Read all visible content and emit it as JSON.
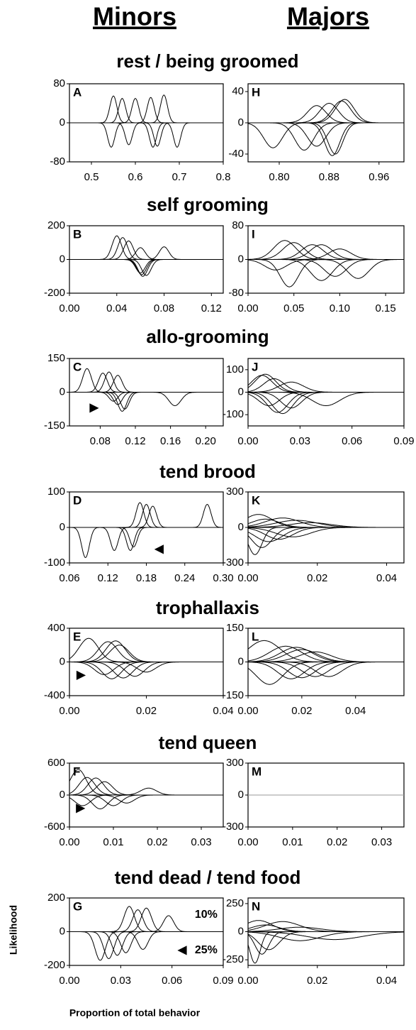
{
  "column_headers": [
    "Minors",
    "Majors"
  ],
  "y_label": "Likelihood",
  "x_label": "Proportion of total behavior",
  "chart_data": [
    {
      "type": "line",
      "title": "rest / being groomed",
      "panel": "A",
      "xlim": [
        0.45,
        0.8
      ],
      "xticks": [
        0.5,
        0.6,
        0.7,
        0.8
      ],
      "ylim": [
        -80,
        80
      ],
      "yticks": [
        -80,
        0,
        80
      ],
      "curves": [
        {
          "x": 0.55,
          "y": 55,
          "sd": 0.008
        },
        {
          "x": 0.57,
          "y": 50,
          "sd": 0.008
        },
        {
          "x": 0.6,
          "y": 50,
          "sd": 0.008
        },
        {
          "x": 0.635,
          "y": 52,
          "sd": 0.008
        },
        {
          "x": 0.665,
          "y": 57,
          "sd": 0.008
        },
        {
          "x": 0.545,
          "y": -50,
          "sd": 0.008
        },
        {
          "x": 0.585,
          "y": -45,
          "sd": 0.008
        },
        {
          "x": 0.64,
          "y": -50,
          "sd": 0.008
        },
        {
          "x": 0.65,
          "y": -48,
          "sd": 0.008
        },
        {
          "x": 0.695,
          "y": -50,
          "sd": 0.008
        }
      ]
    },
    {
      "type": "line",
      "title": "self grooming",
      "panel": "B",
      "xlim": [
        0,
        0.13
      ],
      "xticks": [
        {
          "value": 0,
          "label": "0.00"
        },
        {
          "value": 0.04,
          "label": "0.04"
        },
        {
          "value": 0.08,
          "label": "0.08"
        },
        {
          "value": 0.12,
          "label": "0.12"
        }
      ],
      "ylim": [
        -200,
        200
      ],
      "yticks": [
        -200,
        0,
        200
      ],
      "curves": [
        {
          "x": 0.04,
          "y": 140,
          "sd": 0.004
        },
        {
          "x": 0.045,
          "y": 130,
          "sd": 0.004
        },
        {
          "x": 0.05,
          "y": 110,
          "sd": 0.004
        },
        {
          "x": 0.06,
          "y": 70,
          "sd": 0.004
        },
        {
          "x": 0.08,
          "y": 75,
          "sd": 0.004
        },
        {
          "x": 0.06,
          "y": -80,
          "sd": 0.004
        },
        {
          "x": 0.061,
          "y": -90,
          "sd": 0.004
        },
        {
          "x": 0.062,
          "y": -100,
          "sd": 0.004
        },
        {
          "x": 0.065,
          "y": -95,
          "sd": 0.004
        }
      ]
    },
    {
      "type": "line",
      "title": "allo-grooming",
      "panel": "C",
      "xlim": [
        0.045,
        0.22
      ],
      "xticks": [
        {
          "value": 0.08,
          "label": "0.08"
        },
        {
          "value": 0.12,
          "label": "0.12"
        },
        {
          "value": 0.16,
          "label": "0.16"
        },
        {
          "value": 0.2,
          "label": "0.20"
        }
      ],
      "ylim": [
        -150,
        150
      ],
      "yticks": [
        -150,
        0,
        150
      ],
      "curves": [
        {
          "x": 0.065,
          "y": 105,
          "sd": 0.005
        },
        {
          "x": 0.083,
          "y": 85,
          "sd": 0.005
        },
        {
          "x": 0.09,
          "y": 90,
          "sd": 0.005
        },
        {
          "x": 0.1,
          "y": 75,
          "sd": 0.005
        },
        {
          "x": 0.095,
          "y": -40,
          "sd": 0.005
        },
        {
          "x": 0.1,
          "y": -55,
          "sd": 0.005
        },
        {
          "x": 0.105,
          "y": -85,
          "sd": 0.005
        },
        {
          "x": 0.108,
          "y": -75,
          "sd": 0.005
        },
        {
          "x": 0.165,
          "y": -60,
          "sd": 0.007
        }
      ],
      "annotations": [
        {
          "text": "▶",
          "x": 0.073,
          "y": -70
        }
      ]
    },
    {
      "type": "line",
      "title": "tend brood",
      "panel": "D",
      "xlim": [
        0.06,
        0.3
      ],
      "xticks": [
        {
          "value": 0.06,
          "label": "0.06"
        },
        {
          "value": 0.12,
          "label": "0.12"
        },
        {
          "value": 0.18,
          "label": "0.18"
        },
        {
          "value": 0.24,
          "label": "0.24"
        },
        {
          "value": 0.3,
          "label": "0.30"
        }
      ],
      "ylim": [
        -100,
        100
      ],
      "yticks": [
        -100,
        0,
        100
      ],
      "curves": [
        {
          "x": 0.17,
          "y": 70,
          "sd": 0.006
        },
        {
          "x": 0.18,
          "y": 65,
          "sd": 0.006
        },
        {
          "x": 0.19,
          "y": 60,
          "sd": 0.006
        },
        {
          "x": 0.275,
          "y": 65,
          "sd": 0.006
        },
        {
          "x": 0.085,
          "y": -85,
          "sd": 0.006
        },
        {
          "x": 0.13,
          "y": -65,
          "sd": 0.006
        },
        {
          "x": 0.155,
          "y": -65,
          "sd": 0.006
        },
        {
          "x": 0.16,
          "y": -55,
          "sd": 0.006
        }
      ],
      "annotations": [
        {
          "text": "◀",
          "x": 0.2,
          "y": -62
        }
      ]
    },
    {
      "type": "line",
      "title": "trophallaxis",
      "panel": "E",
      "xlim": [
        0,
        0.04
      ],
      "xticks": [
        {
          "value": 0,
          "label": "0.00"
        },
        {
          "value": 0.02,
          "label": "0.02"
        },
        {
          "value": 0.04,
          "label": "0.04"
        }
      ],
      "ylim": [
        -400,
        400
      ],
      "yticks": [
        -400,
        0,
        400
      ],
      "curves": [
        {
          "x": 0.005,
          "y": 280,
          "sd": 0.0025
        },
        {
          "x": 0.01,
          "y": 240,
          "sd": 0.0025
        },
        {
          "x": 0.012,
          "y": 250,
          "sd": 0.0025
        },
        {
          "x": 0.013,
          "y": 200,
          "sd": 0.0025
        },
        {
          "x": 0.009,
          "y": -150,
          "sd": 0.0025
        },
        {
          "x": 0.011,
          "y": -200,
          "sd": 0.0025
        },
        {
          "x": 0.014,
          "y": -190,
          "sd": 0.0025
        },
        {
          "x": 0.017,
          "y": -170,
          "sd": 0.0025
        },
        {
          "x": 0.02,
          "y": -120,
          "sd": 0.0025
        }
      ],
      "annotations": [
        {
          "text": "▶",
          "x": 0.003,
          "y": -160
        }
      ]
    },
    {
      "type": "line",
      "title": "tend queen",
      "panel": "F",
      "xlim": [
        0,
        0.035
      ],
      "xticks": [
        {
          "value": 0,
          "label": "0.00"
        },
        {
          "value": 0.01,
          "label": "0.01"
        },
        {
          "value": 0.02,
          "label": "0.02"
        },
        {
          "value": 0.03,
          "label": "0.03"
        }
      ],
      "ylim": [
        -600,
        600
      ],
      "yticks": [
        -600,
        0,
        600
      ],
      "curves": [
        {
          "x": 0.002,
          "y": 480,
          "sd": 0.0018
        },
        {
          "x": 0.004,
          "y": 330,
          "sd": 0.0018
        },
        {
          "x": 0.006,
          "y": 320,
          "sd": 0.0018
        },
        {
          "x": 0.008,
          "y": 250,
          "sd": 0.0018
        },
        {
          "x": 0.018,
          "y": 130,
          "sd": 0.0018
        },
        {
          "x": 0.003,
          "y": -200,
          "sd": 0.0018
        },
        {
          "x": 0.007,
          "y": -260,
          "sd": 0.0018
        },
        {
          "x": 0.01,
          "y": -200,
          "sd": 0.0018
        },
        {
          "x": 0.013,
          "y": -150,
          "sd": 0.0018
        }
      ],
      "annotations": [
        {
          "text": "▶",
          "x": 0.0025,
          "y": -250
        }
      ]
    },
    {
      "type": "line",
      "title": "tend dead / tend food",
      "panel": "G",
      "xlim": [
        0,
        0.09
      ],
      "xticks": [
        {
          "value": 0,
          "label": "0.00"
        },
        {
          "value": 0.03,
          "label": "0.03"
        },
        {
          "value": 0.06,
          "label": "0.06"
        },
        {
          "value": 0.09,
          "label": "0.09"
        }
      ],
      "ylim": [
        -200,
        200
      ],
      "yticks": [
        -200,
        0,
        200
      ],
      "curves": [
        {
          "x": 0.035,
          "y": 150,
          "sd": 0.003
        },
        {
          "x": 0.04,
          "y": 130,
          "sd": 0.003
        },
        {
          "x": 0.045,
          "y": 140,
          "sd": 0.003
        },
        {
          "x": 0.058,
          "y": 95,
          "sd": 0.003
        },
        {
          "x": 0.018,
          "y": -170,
          "sd": 0.003
        },
        {
          "x": 0.023,
          "y": -160,
          "sd": 0.003
        },
        {
          "x": 0.028,
          "y": -140,
          "sd": 0.003
        },
        {
          "x": 0.033,
          "y": -125,
          "sd": 0.003
        },
        {
          "x": 0.043,
          "y": -105,
          "sd": 0.003
        }
      ],
      "annotations": [
        {
          "text": "10%",
          "x": 0.08,
          "y": 100
        },
        {
          "text": "◀",
          "x": 0.066,
          "y": -110
        },
        {
          "text": "25%",
          "x": 0.08,
          "y": -110
        }
      ]
    },
    {
      "type": "line",
      "panel": "H",
      "xlim": [
        0.75,
        1.0
      ],
      "xticks": [
        {
          "value": 0.8,
          "label": "0.80"
        },
        {
          "value": 0.88,
          "label": "0.88"
        },
        {
          "value": 0.96,
          "label": "0.96"
        }
      ],
      "ylim": [
        -50,
        50
      ],
      "yticks": [
        -40,
        0,
        40
      ],
      "curves": [
        {
          "x": 0.86,
          "y": 22,
          "sd": 0.015
        },
        {
          "x": 0.88,
          "y": 25,
          "sd": 0.015
        },
        {
          "x": 0.9,
          "y": 28,
          "sd": 0.015
        },
        {
          "x": 0.905,
          "y": 30,
          "sd": 0.015
        },
        {
          "x": 0.79,
          "y": -32,
          "sd": 0.015
        },
        {
          "x": 0.84,
          "y": -35,
          "sd": 0.015
        },
        {
          "x": 0.86,
          "y": -30,
          "sd": 0.015
        },
        {
          "x": 0.885,
          "y": -42,
          "sd": 0.012
        },
        {
          "x": 0.89,
          "y": -40,
          "sd": 0.012
        }
      ]
    },
    {
      "type": "line",
      "panel": "I",
      "xlim": [
        0,
        0.17
      ],
      "xticks": [
        {
          "value": 0,
          "label": "0.00"
        },
        {
          "value": 0.05,
          "label": "0.05"
        },
        {
          "value": 0.1,
          "label": "0.10"
        },
        {
          "value": 0.15,
          "label": "0.15"
        }
      ],
      "ylim": [
        -80,
        80
      ],
      "yticks": [
        -80,
        0,
        80
      ],
      "curves": [
        {
          "x": 0.04,
          "y": 45,
          "sd": 0.012
        },
        {
          "x": 0.05,
          "y": 40,
          "sd": 0.012
        },
        {
          "x": 0.07,
          "y": 35,
          "sd": 0.012
        },
        {
          "x": 0.08,
          "y": 35,
          "sd": 0.012
        },
        {
          "x": 0.1,
          "y": 25,
          "sd": 0.012
        },
        {
          "x": 0.03,
          "y": -25,
          "sd": 0.012
        },
        {
          "x": 0.045,
          "y": -65,
          "sd": 0.01
        },
        {
          "x": 0.08,
          "y": -50,
          "sd": 0.012
        },
        {
          "x": 0.095,
          "y": -40,
          "sd": 0.012
        },
        {
          "x": 0.12,
          "y": -45,
          "sd": 0.012
        }
      ]
    },
    {
      "type": "line",
      "panel": "J",
      "xlim": [
        0,
        0.09
      ],
      "xticks": [
        {
          "value": 0,
          "label": "0.00"
        },
        {
          "value": 0.03,
          "label": "0.03"
        },
        {
          "value": 0.06,
          "label": "0.06"
        },
        {
          "value": 0.09,
          "label": "0.09"
        }
      ],
      "ylim": [
        -150,
        150
      ],
      "yticks": [
        -100,
        0,
        100
      ],
      "curves": [
        {
          "x": 0.008,
          "y": 75,
          "sd": 0.006
        },
        {
          "x": 0.01,
          "y": 80,
          "sd": 0.006
        },
        {
          "x": 0.015,
          "y": 60,
          "sd": 0.006
        },
        {
          "x": 0.025,
          "y": 45,
          "sd": 0.007
        },
        {
          "x": 0.012,
          "y": -60,
          "sd": 0.006
        },
        {
          "x": 0.017,
          "y": -90,
          "sd": 0.006
        },
        {
          "x": 0.02,
          "y": -95,
          "sd": 0.006
        },
        {
          "x": 0.025,
          "y": -70,
          "sd": 0.006
        },
        {
          "x": 0.045,
          "y": -60,
          "sd": 0.008
        }
      ]
    },
    {
      "type": "line",
      "panel": "K",
      "xlim": [
        0,
        0.045
      ],
      "xticks": [
        {
          "value": 0,
          "label": "0.00"
        },
        {
          "value": 0.02,
          "label": "0.02"
        },
        {
          "value": 0.04,
          "label": "0.04"
        }
      ],
      "ylim": [
        -300,
        300
      ],
      "yticks": [
        -300,
        0,
        300
      ],
      "curves": [
        {
          "x": 0.003,
          "y": 110,
          "sd": 0.004
        },
        {
          "x": 0.005,
          "y": 70,
          "sd": 0.004
        },
        {
          "x": 0.01,
          "y": 80,
          "sd": 0.005
        },
        {
          "x": 0.014,
          "y": 60,
          "sd": 0.006
        },
        {
          "x": 0.018,
          "y": 40,
          "sd": 0.006
        },
        {
          "x": 0.002,
          "y": -230,
          "sd": 0.002
        },
        {
          "x": 0.004,
          "y": -170,
          "sd": 0.003
        },
        {
          "x": 0.006,
          "y": -120,
          "sd": 0.004
        },
        {
          "x": 0.009,
          "y": -100,
          "sd": 0.004
        },
        {
          "x": 0.013,
          "y": -80,
          "sd": 0.005
        }
      ]
    },
    {
      "type": "line",
      "panel": "L",
      "xlim": [
        0,
        0.058
      ],
      "xticks": [
        {
          "value": 0,
          "label": "0.00"
        },
        {
          "value": 0.02,
          "label": "0.02"
        },
        {
          "value": 0.04,
          "label": "0.04"
        }
      ],
      "ylim": [
        -150,
        150
      ],
      "yticks": [
        -150,
        0,
        150
      ],
      "curves": [
        {
          "x": 0.006,
          "y": 95,
          "sd": 0.006
        },
        {
          "x": 0.014,
          "y": 70,
          "sd": 0.006
        },
        {
          "x": 0.018,
          "y": 65,
          "sd": 0.006
        },
        {
          "x": 0.02,
          "y": 55,
          "sd": 0.006
        },
        {
          "x": 0.025,
          "y": 45,
          "sd": 0.006
        },
        {
          "x": 0.008,
          "y": -100,
          "sd": 0.005
        },
        {
          "x": 0.016,
          "y": -75,
          "sd": 0.005
        },
        {
          "x": 0.02,
          "y": -70,
          "sd": 0.005
        },
        {
          "x": 0.025,
          "y": -65,
          "sd": 0.005
        },
        {
          "x": 0.03,
          "y": -65,
          "sd": 0.005
        }
      ]
    },
    {
      "type": "line",
      "panel": "M",
      "xlim": [
        0,
        0.035
      ],
      "xticks": [
        {
          "value": 0,
          "label": "0.00"
        },
        {
          "value": 0.01,
          "label": "0.01"
        },
        {
          "value": 0.02,
          "label": "0.02"
        },
        {
          "value": 0.03,
          "label": "0.03"
        }
      ],
      "ylim": [
        -300,
        300
      ],
      "yticks": [
        -300,
        0,
        300
      ],
      "curves": [],
      "zero_line_color": "#999999"
    },
    {
      "type": "line",
      "panel": "N",
      "xlim": [
        0,
        0.045
      ],
      "xticks": [
        {
          "value": 0,
          "label": "0.00"
        },
        {
          "value": 0.02,
          "label": "0.02"
        },
        {
          "value": 0.04,
          "label": "0.04"
        }
      ],
      "ylim": [
        -300,
        300
      ],
      "yticks": [
        -250,
        0,
        250
      ],
      "curves": [
        {
          "x": 0.003,
          "y": 100,
          "sd": 0.004
        },
        {
          "x": 0.005,
          "y": 60,
          "sd": 0.004
        },
        {
          "x": 0.01,
          "y": 90,
          "sd": 0.005
        },
        {
          "x": 0.015,
          "y": 40,
          "sd": 0.006
        },
        {
          "x": 0.002,
          "y": -280,
          "sd": 0.0015
        },
        {
          "x": 0.004,
          "y": -200,
          "sd": 0.002
        },
        {
          "x": 0.006,
          "y": -160,
          "sd": 0.003
        },
        {
          "x": 0.015,
          "y": -80,
          "sd": 0.006
        },
        {
          "x": 0.025,
          "y": -70,
          "sd": 0.008
        }
      ]
    }
  ]
}
